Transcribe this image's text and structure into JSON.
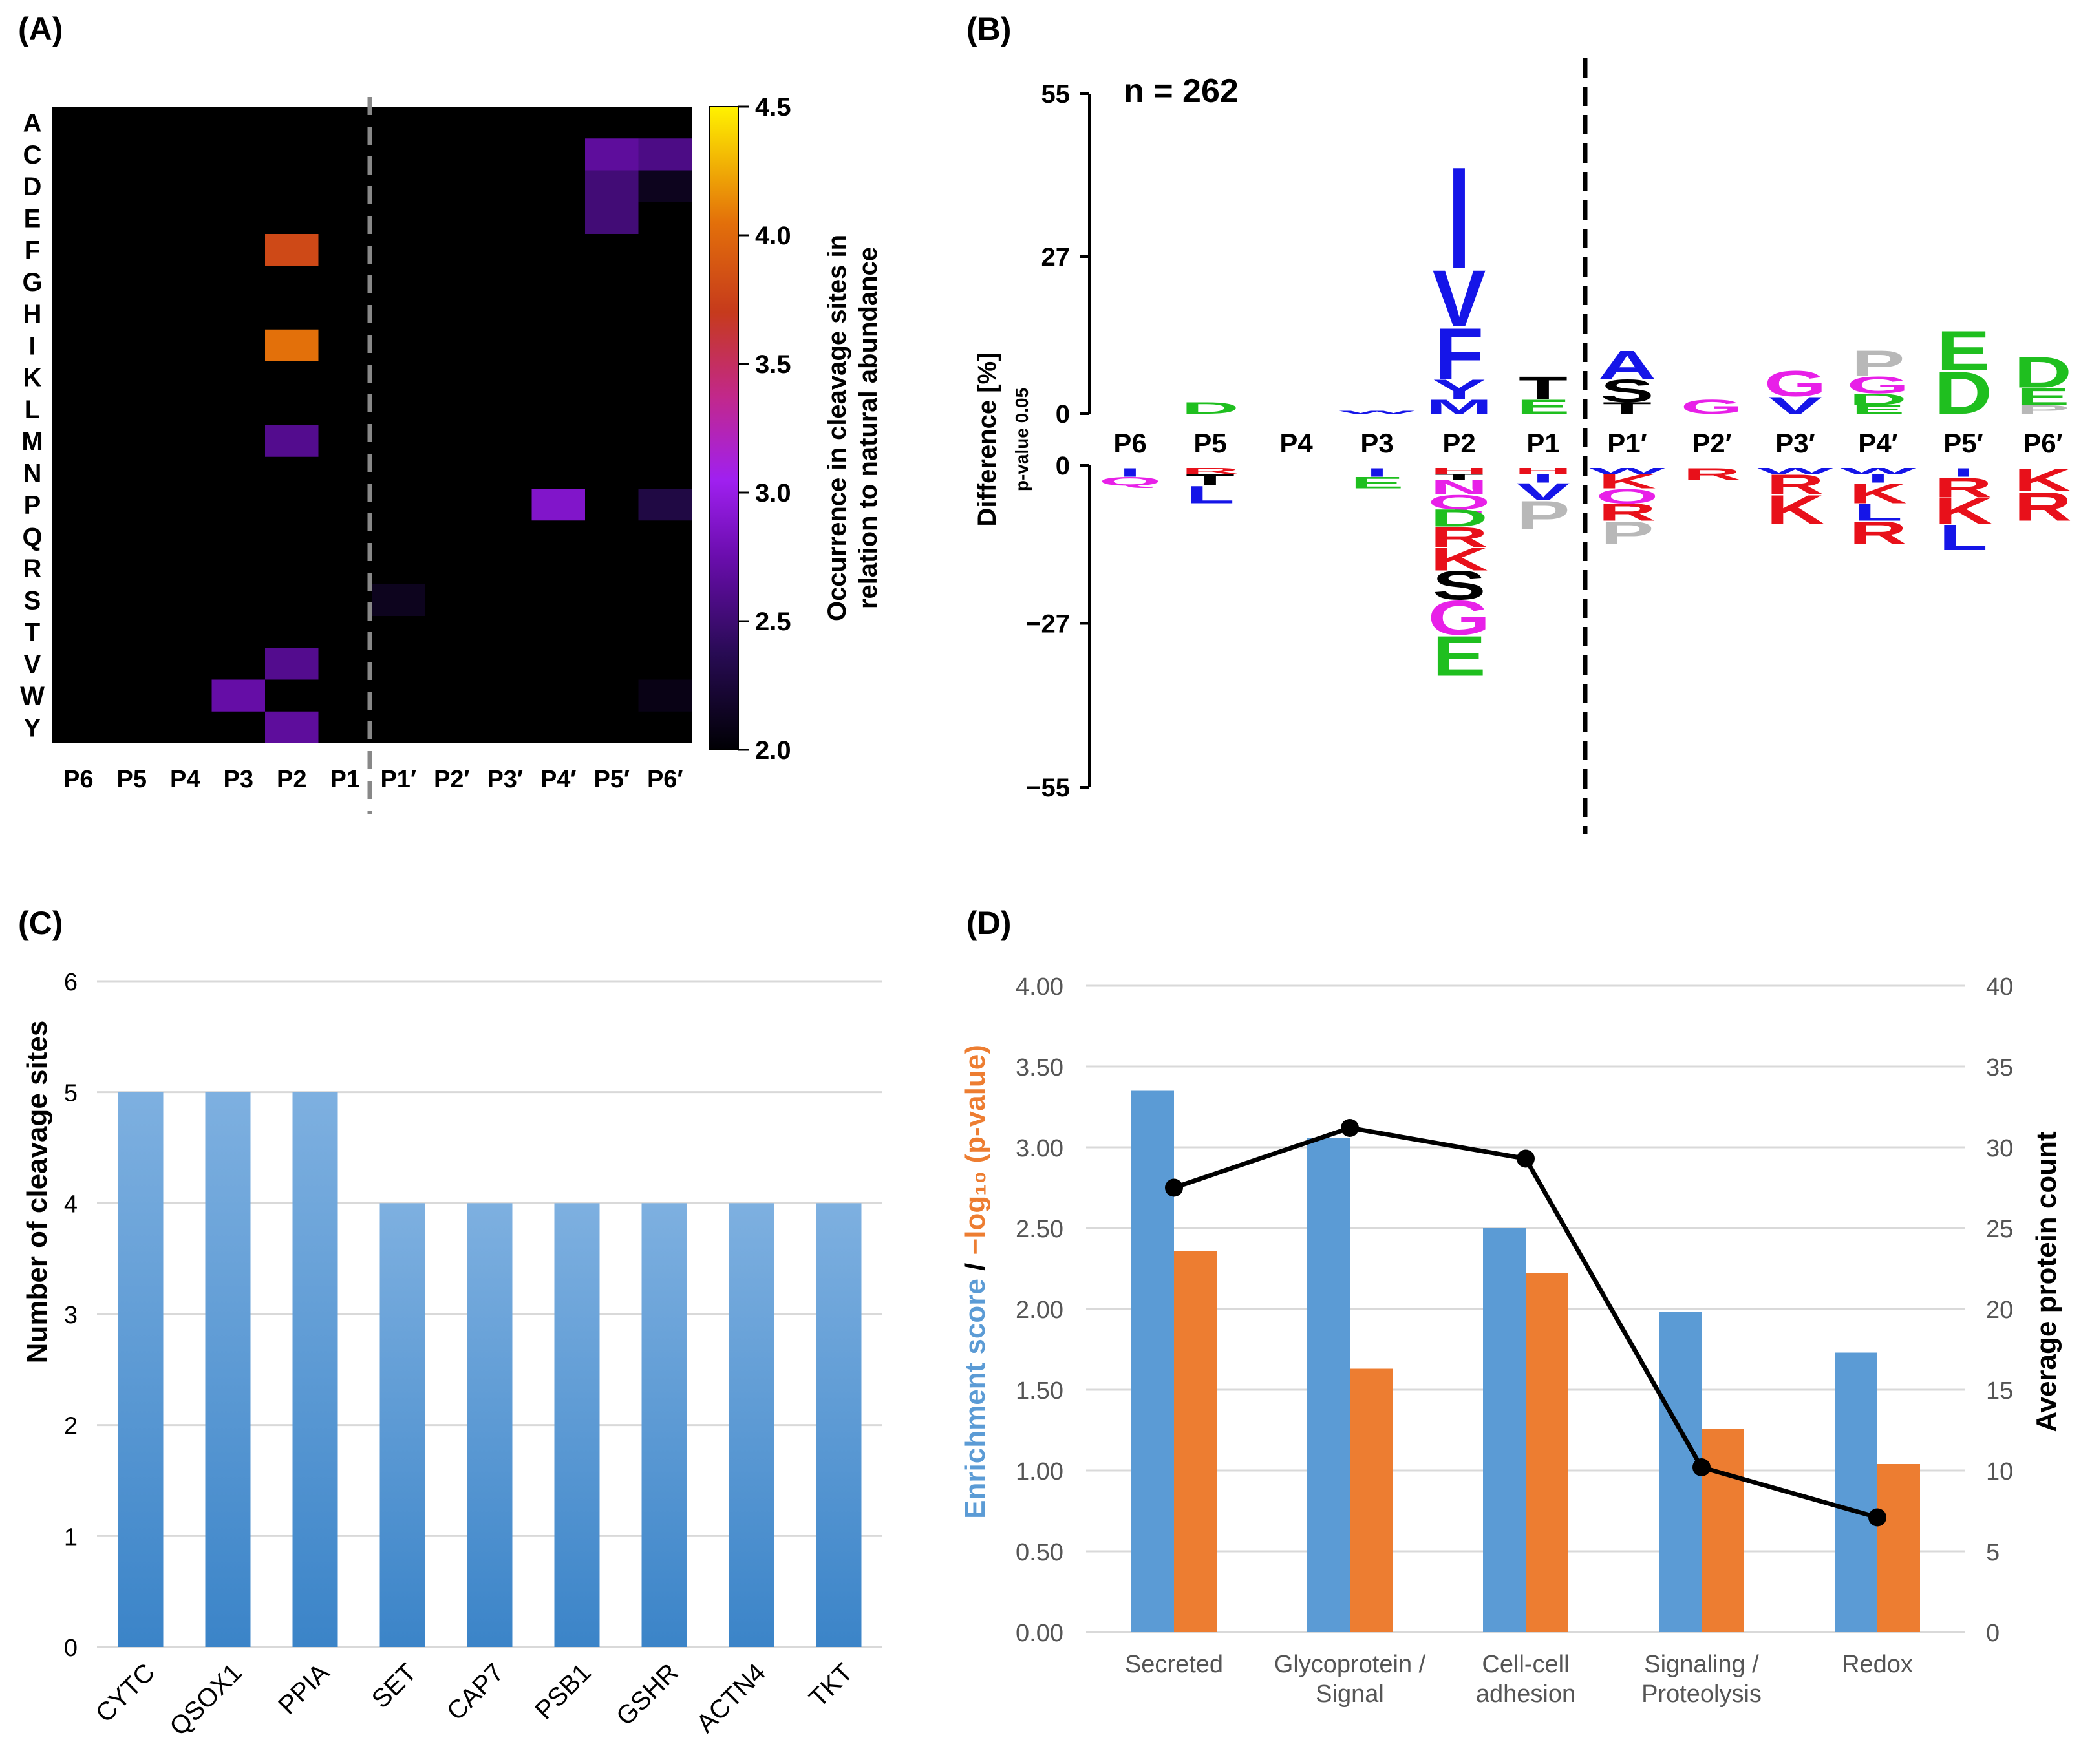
{
  "colors": {
    "aa_acidic": "#1fbf1f",
    "aa_basic": "#e8101a",
    "aa_hydrophobic": "#1515e8",
    "aa_polar": "#e820e8",
    "aa_neutral": "#000000",
    "aa_special": "#b8b8b8",
    "bar_blue": "#5b9bd5",
    "bar_orange": "#ed7d31",
    "line_black": "#000000",
    "heat_bg": "#000000"
  },
  "chart_data": [
    {
      "panel": "A",
      "panel_label": "(A)",
      "type": "heatmap",
      "rows": [
        "A",
        "C",
        "D",
        "E",
        "F",
        "G",
        "H",
        "I",
        "K",
        "L",
        "M",
        "N",
        "P",
        "Q",
        "R",
        "S",
        "T",
        "V",
        "W",
        "Y"
      ],
      "columns": [
        "P6",
        "P5",
        "P4",
        "P3",
        "P2",
        "P1",
        "P1′",
        "P2′",
        "P3′",
        "P4′",
        "P5′",
        "P6′"
      ],
      "divider_after_column": "P1",
      "colorbar": {
        "label_line1": "Occurrence in cleavage sites in",
        "label_line2": "relation to natural abundance",
        "min": 2.0,
        "max": 4.5,
        "ticks": [
          "2.0",
          "2.5",
          "3.0",
          "3.5",
          "4.0",
          "4.5"
        ]
      },
      "cells": [
        {
          "row": "C",
          "col": "P5′",
          "value": 2.68
        },
        {
          "row": "C",
          "col": "P6′",
          "value": 2.58
        },
        {
          "row": "D",
          "col": "P5′",
          "value": 2.52
        },
        {
          "row": "D",
          "col": "P6′",
          "value": 2.12
        },
        {
          "row": "E",
          "col": "P5′",
          "value": 2.52
        },
        {
          "row": "F",
          "col": "P2",
          "value": 3.8
        },
        {
          "row": "I",
          "col": "P2",
          "value": 4.05
        },
        {
          "row": "M",
          "col": "P2",
          "value": 2.62
        },
        {
          "row": "P",
          "col": "P4′",
          "value": 2.88
        },
        {
          "row": "P",
          "col": "P6′",
          "value": 2.3
        },
        {
          "row": "S",
          "col": "P1′",
          "value": 2.12
        },
        {
          "row": "V",
          "col": "P2",
          "value": 2.62
        },
        {
          "row": "W",
          "col": "P3",
          "value": 2.72
        },
        {
          "row": "W",
          "col": "P6′",
          "value": 2.08
        },
        {
          "row": "Y",
          "col": "P2",
          "value": 2.68
        }
      ]
    },
    {
      "panel": "B",
      "panel_label": "(B)",
      "type": "logo",
      "annotation": "n = 262",
      "ylabel": "Difference [%]",
      "ylabel_sub": "p-value 0.05",
      "yticks_upper": [
        "55",
        "27",
        "0"
      ],
      "yticks_lower": [
        "0",
        "−27",
        "−55"
      ],
      "ylim": [
        -55,
        55
      ],
      "positions": [
        "P6",
        "P5",
        "P4",
        "P3",
        "P2",
        "P1",
        "P1′",
        "P2′",
        "P3′",
        "P4′",
        "P5′",
        "P6′"
      ],
      "divider_after_position": "P1",
      "enriched": [
        {
          "position": "P6",
          "letters": []
        },
        {
          "position": "P5",
          "letters": [
            {
              "aa": "D",
              "height": 2
            }
          ]
        },
        {
          "position": "P4",
          "letters": []
        },
        {
          "position": "P3",
          "letters": [
            {
              "aa": "W",
              "height": 0.5
            }
          ]
        },
        {
          "position": "P2",
          "letters": [
            {
              "aa": "M",
              "height": 2.5
            },
            {
              "aa": "Y",
              "height": 3.5
            },
            {
              "aa": "F",
              "height": 9
            },
            {
              "aa": "V",
              "height": 10
            },
            {
              "aa": "I",
              "height": 18
            }
          ]
        },
        {
          "position": "P1",
          "letters": [
            {
              "aa": "E",
              "height": 2.5
            },
            {
              "aa": "T",
              "height": 4
            }
          ]
        },
        {
          "position": "P1′",
          "letters": [
            {
              "aa": "T",
              "height": 2
            },
            {
              "aa": "S",
              "height": 4
            },
            {
              "aa": "A",
              "height": 5
            }
          ]
        },
        {
          "position": "P2′",
          "letters": [
            {
              "aa": "G",
              "height": 2.5
            }
          ]
        },
        {
          "position": "P3′",
          "letters": [
            {
              "aa": "V",
              "height": 3
            },
            {
              "aa": "G",
              "height": 4.5
            }
          ]
        },
        {
          "position": "P4′",
          "letters": [
            {
              "aa": "E",
              "height": 1.5
            },
            {
              "aa": "D",
              "height": 2
            },
            {
              "aa": "G",
              "height": 3
            },
            {
              "aa": "P",
              "height": 4.5
            }
          ]
        },
        {
          "position": "P5′",
          "letters": [
            {
              "aa": "D",
              "height": 7.5
            },
            {
              "aa": "E",
              "height": 7
            }
          ]
        },
        {
          "position": "P6′",
          "letters": [
            {
              "aa": "P",
              "height": 1.5
            },
            {
              "aa": "E",
              "height": 3
            },
            {
              "aa": "D",
              "height": 5.5
            }
          ]
        }
      ],
      "depleted": [
        {
          "position": "P6",
          "letters": [
            {
              "aa": "I",
              "height": 1.5
            },
            {
              "aa": "Q",
              "height": 1.5
            }
          ]
        },
        {
          "position": "P5",
          "letters": [
            {
              "aa": "R",
              "height": 1
            },
            {
              "aa": "T",
              "height": 2
            },
            {
              "aa": "L",
              "height": 3
            }
          ]
        },
        {
          "position": "P4",
          "letters": []
        },
        {
          "position": "P3",
          "letters": [
            {
              "aa": "I",
              "height": 1.5
            },
            {
              "aa": "E",
              "height": 2
            }
          ]
        },
        {
          "position": "P2",
          "letters": [
            {
              "aa": "H",
              "height": 1
            },
            {
              "aa": "T",
              "height": 1
            },
            {
              "aa": "N",
              "height": 2.5
            },
            {
              "aa": "Q",
              "height": 2.5
            },
            {
              "aa": "D",
              "height": 3
            },
            {
              "aa": "R",
              "height": 3.5
            },
            {
              "aa": "K",
              "height": 4
            },
            {
              "aa": "S",
              "height": 5
            },
            {
              "aa": "G",
              "height": 6
            },
            {
              "aa": "E",
              "height": 7
            }
          ]
        },
        {
          "position": "P1",
          "letters": [
            {
              "aa": "H",
              "height": 1
            },
            {
              "aa": "I",
              "height": 1.5
            },
            {
              "aa": "V",
              "height": 3
            },
            {
              "aa": "P",
              "height": 5
            }
          ]
        },
        {
          "position": "P1′",
          "letters": [
            {
              "aa": "W",
              "height": 1
            },
            {
              "aa": "K",
              "height": 2.5
            },
            {
              "aa": "Q",
              "height": 2.5
            },
            {
              "aa": "R",
              "height": 3
            },
            {
              "aa": "P",
              "height": 4
            }
          ]
        },
        {
          "position": "P2′",
          "letters": [
            {
              "aa": "R",
              "height": 2
            }
          ]
        },
        {
          "position": "P3′",
          "letters": [
            {
              "aa": "W",
              "height": 1
            },
            {
              "aa": "R",
              "height": 3.5
            },
            {
              "aa": "K",
              "height": 5
            }
          ]
        },
        {
          "position": "P4′",
          "letters": [
            {
              "aa": "W",
              "height": 1
            },
            {
              "aa": "I",
              "height": 1.5
            },
            {
              "aa": "K",
              "height": 3.5
            },
            {
              "aa": "L",
              "height": 3
            },
            {
              "aa": "R",
              "height": 4
            }
          ]
        },
        {
          "position": "P5′",
          "letters": [
            {
              "aa": "I",
              "height": 1.5
            },
            {
              "aa": "R",
              "height": 3.5
            },
            {
              "aa": "K",
              "height": 4.5
            },
            {
              "aa": "L",
              "height": 4.5
            }
          ]
        },
        {
          "position": "P6′",
          "letters": [
            {
              "aa": "K",
              "height": 4
            },
            {
              "aa": "R",
              "height": 5
            }
          ]
        }
      ]
    },
    {
      "panel": "C",
      "panel_label": "(C)",
      "type": "bar",
      "title": "",
      "xlabel": "",
      "ylabel": "Number of cleavage sites",
      "ylim": [
        0,
        6
      ],
      "yticks": [
        0,
        1,
        2,
        3,
        4,
        5,
        6
      ],
      "categories": [
        "CYTC",
        "QSOX1",
        "PPIA",
        "SET",
        "CAP7",
        "PSB1",
        "GSHR",
        "ACTN4",
        "TKT"
      ],
      "values": [
        5,
        5,
        5,
        4,
        4,
        4,
        4,
        4,
        4
      ],
      "grid": true
    },
    {
      "panel": "D",
      "panel_label": "(D)",
      "type": "bar",
      "ylabel_left_part1": "Enrichment score",
      "ylabel_left_sep": " / ",
      "ylabel_left_part2": "−log₁₀ (p-value)",
      "ylabel_right": "Average protein count",
      "ylim_left": [
        0,
        4
      ],
      "yticks_left": [
        "0.00",
        "0.50",
        "1.00",
        "1.50",
        "2.00",
        "2.50",
        "3.00",
        "3.50",
        "4.00"
      ],
      "ylim_right": [
        0,
        40
      ],
      "yticks_right": [
        "0",
        "5",
        "10",
        "15",
        "20",
        "25",
        "30",
        "35",
        "40"
      ],
      "categories": [
        [
          "Secreted"
        ],
        [
          "Glycoprotein /",
          "Signal"
        ],
        [
          "Cell-cell",
          "adhesion"
        ],
        [
          "Signaling /",
          "Proteolysis"
        ],
        [
          "Redox"
        ]
      ],
      "series": [
        {
          "name": "Enrichment score",
          "type": "bar",
          "axis": "left",
          "values": [
            3.35,
            3.06,
            2.5,
            1.98,
            1.73
          ]
        },
        {
          "name": "−log10 (p-value)",
          "type": "bar",
          "axis": "left",
          "values": [
            2.36,
            1.63,
            2.22,
            1.26,
            1.04
          ]
        },
        {
          "name": "Average protein count",
          "type": "line",
          "axis": "right",
          "values": [
            27.5,
            31.2,
            29.3,
            10.2,
            7.1
          ]
        }
      ],
      "grid": true
    }
  ]
}
